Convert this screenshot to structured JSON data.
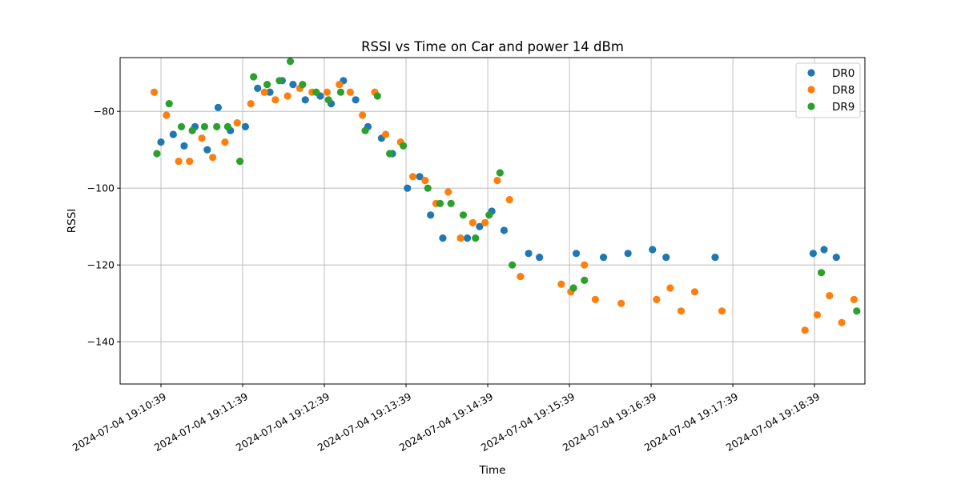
{
  "chart_data": {
    "type": "scatter",
    "title": "RSSI vs Time on Car and power 14 dBm",
    "xlabel": "Time",
    "ylabel": "RSSI",
    "x_ticks": [
      "2024-07-04 19:10:39",
      "2024-07-04 19:11:39",
      "2024-07-04 19:12:39",
      "2024-07-04 19:13:39",
      "2024-07-04 19:14:39",
      "2024-07-04 19:15:39",
      "2024-07-04 19:16:39",
      "2024-07-04 19:17:39",
      "2024-07-04 19:18:39"
    ],
    "xlim": [
      "2024-07-04 19:10:09",
      "2024-07-04 19:19:16"
    ],
    "ylim": [
      -151,
      -66
    ],
    "y_ticks": [
      -140,
      -120,
      -100,
      -80
    ],
    "grid": true,
    "legend_position": "upper right",
    "series": [
      {
        "name": "DR0",
        "color": "#1f77b4",
        "points": [
          [
            "2024-07-04 19:10:39",
            -88
          ],
          [
            "2024-07-04 19:10:48",
            -86
          ],
          [
            "2024-07-04 19:10:56",
            -89
          ],
          [
            "2024-07-04 19:11:04",
            -84
          ],
          [
            "2024-07-04 19:11:13",
            -90
          ],
          [
            "2024-07-04 19:11:21",
            -79
          ],
          [
            "2024-07-04 19:11:30",
            -85
          ],
          [
            "2024-07-04 19:11:41",
            -84
          ],
          [
            "2024-07-04 19:11:50",
            -74
          ],
          [
            "2024-07-04 19:11:59",
            -75
          ],
          [
            "2024-07-04 19:12:08",
            -72
          ],
          [
            "2024-07-04 19:12:16",
            -73
          ],
          [
            "2024-07-04 19:12:25",
            -77
          ],
          [
            "2024-07-04 19:12:36",
            -76
          ],
          [
            "2024-07-04 19:12:44",
            -78
          ],
          [
            "2024-07-04 19:12:53",
            -72
          ],
          [
            "2024-07-04 19:13:02",
            -77
          ],
          [
            "2024-07-04 19:13:11",
            -84
          ],
          [
            "2024-07-04 19:13:21",
            -87
          ],
          [
            "2024-07-04 19:13:29",
            -91
          ],
          [
            "2024-07-04 19:13:40",
            -100
          ],
          [
            "2024-07-04 19:13:49",
            -97
          ],
          [
            "2024-07-04 19:13:57",
            -107
          ],
          [
            "2024-07-04 19:14:06",
            -113
          ],
          [
            "2024-07-04 19:14:24",
            -113
          ],
          [
            "2024-07-04 19:14:33",
            -110
          ],
          [
            "2024-07-04 19:14:42",
            -106
          ],
          [
            "2024-07-04 19:14:51",
            -111
          ],
          [
            "2024-07-04 19:15:09",
            -117
          ],
          [
            "2024-07-04 19:15:17",
            -118
          ],
          [
            "2024-07-04 19:15:44",
            -117
          ],
          [
            "2024-07-04 19:16:04",
            -118
          ],
          [
            "2024-07-04 19:16:22",
            -117
          ],
          [
            "2024-07-04 19:16:40",
            -116
          ],
          [
            "2024-07-04 19:16:50",
            -118
          ],
          [
            "2024-07-04 19:17:26",
            -118
          ],
          [
            "2024-07-04 19:18:38",
            -117
          ],
          [
            "2024-07-04 19:18:46",
            -116
          ],
          [
            "2024-07-04 19:18:55",
            -118
          ]
        ]
      },
      {
        "name": "DR8",
        "color": "#ff7f0e",
        "points": [
          [
            "2024-07-04 19:10:34",
            -75
          ],
          [
            "2024-07-04 19:10:43",
            -81
          ],
          [
            "2024-07-04 19:10:52",
            -93
          ],
          [
            "2024-07-04 19:11:00",
            -93
          ],
          [
            "2024-07-04 19:11:09",
            -87
          ],
          [
            "2024-07-04 19:11:17",
            -92
          ],
          [
            "2024-07-04 19:11:26",
            -88
          ],
          [
            "2024-07-04 19:11:35",
            -83
          ],
          [
            "2024-07-04 19:11:45",
            -78
          ],
          [
            "2024-07-04 19:11:55",
            -75
          ],
          [
            "2024-07-04 19:12:03",
            -77
          ],
          [
            "2024-07-04 19:12:12",
            -76
          ],
          [
            "2024-07-04 19:12:21",
            -74
          ],
          [
            "2024-07-04 19:12:30",
            -75
          ],
          [
            "2024-07-04 19:12:41",
            -75
          ],
          [
            "2024-07-04 19:12:50",
            -73
          ],
          [
            "2024-07-04 19:12:58",
            -75
          ],
          [
            "2024-07-04 19:13:07",
            -81
          ],
          [
            "2024-07-04 19:13:16",
            -75
          ],
          [
            "2024-07-04 19:13:24",
            -86
          ],
          [
            "2024-07-04 19:13:35",
            -88
          ],
          [
            "2024-07-04 19:13:44",
            -97
          ],
          [
            "2024-07-04 19:13:53",
            -98
          ],
          [
            "2024-07-04 19:14:01",
            -104
          ],
          [
            "2024-07-04 19:14:10",
            -101
          ],
          [
            "2024-07-04 19:14:19",
            -113
          ],
          [
            "2024-07-04 19:14:28",
            -109
          ],
          [
            "2024-07-04 19:14:37",
            -109
          ],
          [
            "2024-07-04 19:14:46",
            -98
          ],
          [
            "2024-07-04 19:14:55",
            -103
          ],
          [
            "2024-07-04 19:15:03",
            -123
          ],
          [
            "2024-07-04 19:15:33",
            -125
          ],
          [
            "2024-07-04 19:15:40",
            -127
          ],
          [
            "2024-07-04 19:15:50",
            -120
          ],
          [
            "2024-07-04 19:15:58",
            -129
          ],
          [
            "2024-07-04 19:16:17",
            -130
          ],
          [
            "2024-07-04 19:16:43",
            -129
          ],
          [
            "2024-07-04 19:16:53",
            -126
          ],
          [
            "2024-07-04 19:17:01",
            -132
          ],
          [
            "2024-07-04 19:17:11",
            -127
          ],
          [
            "2024-07-04 19:17:31",
            -132
          ],
          [
            "2024-07-04 19:18:32",
            -137
          ],
          [
            "2024-07-04 19:18:41",
            -133
          ],
          [
            "2024-07-04 19:18:50",
            -128
          ],
          [
            "2024-07-04 19:18:59",
            -135
          ],
          [
            "2024-07-04 19:19:08",
            -129
          ]
        ]
      },
      {
        "name": "DR9",
        "color": "#2ca02c",
        "points": [
          [
            "2024-07-04 19:10:36",
            -91
          ],
          [
            "2024-07-04 19:10:45",
            -78
          ],
          [
            "2024-07-04 19:10:54",
            -84
          ],
          [
            "2024-07-04 19:11:02",
            -85
          ],
          [
            "2024-07-04 19:11:11",
            -84
          ],
          [
            "2024-07-04 19:11:20",
            -84
          ],
          [
            "2024-07-04 19:11:28",
            -84
          ],
          [
            "2024-07-04 19:11:37",
            -93
          ],
          [
            "2024-07-04 19:11:47",
            -71
          ],
          [
            "2024-07-04 19:11:57",
            -73
          ],
          [
            "2024-07-04 19:12:06",
            -72
          ],
          [
            "2024-07-04 19:12:14",
            -67
          ],
          [
            "2024-07-04 19:12:23",
            -73
          ],
          [
            "2024-07-04 19:12:33",
            -75
          ],
          [
            "2024-07-04 19:12:42",
            -77
          ],
          [
            "2024-07-04 19:12:51",
            -75
          ],
          [
            "2024-07-04 19:13:09",
            -85
          ],
          [
            "2024-07-04 19:13:18",
            -76
          ],
          [
            "2024-07-04 19:13:27",
            -91
          ],
          [
            "2024-07-04 19:13:37",
            -89
          ],
          [
            "2024-07-04 19:13:55",
            -100
          ],
          [
            "2024-07-04 19:14:04",
            -104
          ],
          [
            "2024-07-04 19:14:12",
            -104
          ],
          [
            "2024-07-04 19:14:21",
            -107
          ],
          [
            "2024-07-04 19:14:30",
            -113
          ],
          [
            "2024-07-04 19:14:40",
            -107
          ],
          [
            "2024-07-04 19:14:48",
            -96
          ],
          [
            "2024-07-04 19:14:57",
            -120
          ],
          [
            "2024-07-04 19:15:42",
            -126
          ],
          [
            "2024-07-04 19:15:50",
            -124
          ],
          [
            "2024-07-04 19:18:44",
            -122
          ],
          [
            "2024-07-04 19:19:10",
            -132
          ]
        ]
      }
    ]
  }
}
